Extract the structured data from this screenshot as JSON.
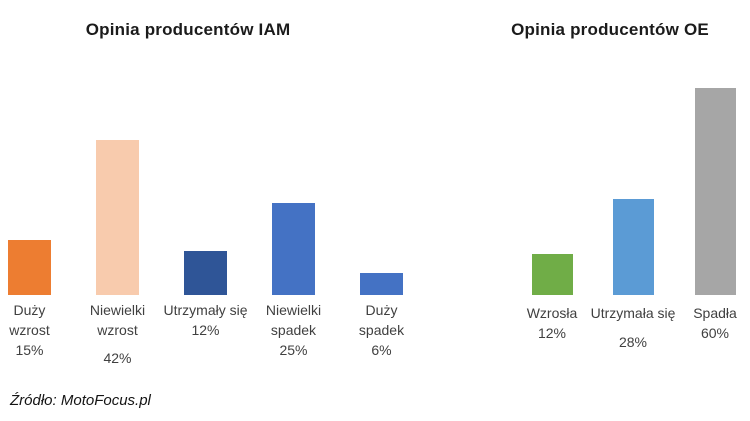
{
  "figure": {
    "source_credit": "Źródło: MotoFocus.pl"
  },
  "chart_data": [
    {
      "type": "bar",
      "title": "Opinia producentów IAM",
      "categories": [
        "Duży wzrost",
        "Niewielki wzrost",
        "Utrzymały się",
        "Niewielki spadek",
        "Duży spadek"
      ],
      "category_lines": [
        [
          "Duży",
          "wzrost"
        ],
        [
          "Niewielki",
          "wzrost"
        ],
        [
          "Utrzymały się"
        ],
        [
          "Niewielki",
          "spadek"
        ],
        [
          "Duży",
          "spadek"
        ]
      ],
      "values": [
        15,
        42,
        12,
        25,
        6
      ],
      "value_labels": [
        "15%",
        "42%",
        "12%",
        "25%",
        "6%"
      ],
      "bar_colors": [
        "#ED7D31",
        "#F8CBAD",
        "#2F5597",
        "#4472C4",
        "#4472C4"
      ],
      "unit": "%",
      "ylim": [
        0,
        45
      ],
      "grid": false,
      "legend": false,
      "axes_visible": false,
      "data_labels_position": "below-category"
    },
    {
      "type": "bar",
      "title": "Opinia producentów OE",
      "categories": [
        "Wzrosła",
        "Utrzymała się",
        "Spadła"
      ],
      "category_lines": [
        [
          "Wzrosła"
        ],
        [
          "Utrzymała się"
        ],
        [
          "Spadła"
        ]
      ],
      "values": [
        12,
        28,
        60
      ],
      "value_labels": [
        "12%",
        "28%",
        "60%"
      ],
      "bar_colors": [
        "#70AD47",
        "#5B9BD5",
        "#A6A6A6"
      ],
      "unit": "%",
      "ylim": [
        0,
        65
      ],
      "grid": false,
      "legend": false,
      "axes_visible": false,
      "data_labels_position": "below-category"
    }
  ]
}
